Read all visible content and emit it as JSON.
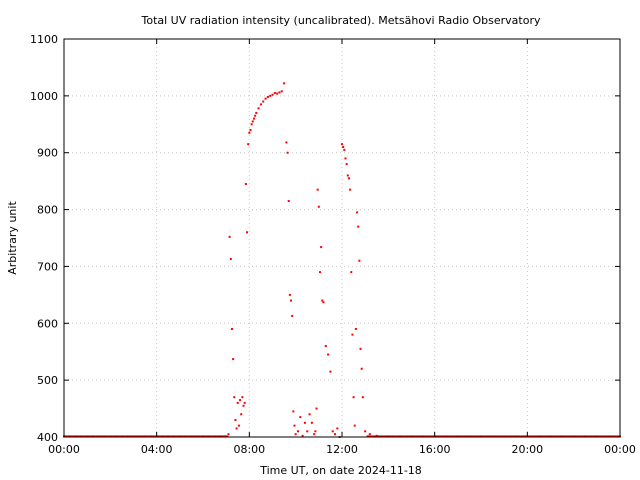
{
  "chart_data": {
    "type": "scatter",
    "title": "Total UV radiation intensity (uncalibrated). Metsähovi Radio Observatory",
    "xlabel": "Time UT, on date 2024-11-18",
    "ylabel": "Arbitrary unit",
    "xlim": [
      0,
      24
    ],
    "ylim": [
      400,
      1100
    ],
    "x_ticks": [
      {
        "value": 0,
        "label": "00:00"
      },
      {
        "value": 4,
        "label": "04:00"
      },
      {
        "value": 8,
        "label": "08:00"
      },
      {
        "value": 12,
        "label": "12:00"
      },
      {
        "value": 16,
        "label": "16:00"
      },
      {
        "value": 20,
        "label": "20:00"
      },
      {
        "value": 24,
        "label": "00:00"
      }
    ],
    "y_ticks": [
      {
        "value": 400,
        "label": "400"
      },
      {
        "value": 500,
        "label": "500"
      },
      {
        "value": 600,
        "label": "600"
      },
      {
        "value": 700,
        "label": "700"
      },
      {
        "value": 800,
        "label": "800"
      },
      {
        "value": 900,
        "label": "900"
      },
      {
        "value": 1000,
        "label": "1000"
      },
      {
        "value": 1100,
        "label": "1100"
      }
    ],
    "grid": true,
    "marker_color": "#ff0000",
    "series": [
      {
        "x": [
          0.0,
          0.25,
          0.5,
          0.75,
          1.0,
          1.25,
          1.5,
          1.75,
          2.0,
          2.25,
          2.5,
          2.75,
          3.0,
          3.25,
          3.5,
          3.75,
          4.0,
          4.25,
          4.5,
          4.75,
          5.0,
          5.25,
          5.5,
          5.75,
          6.0,
          6.25,
          6.5,
          6.75,
          7.0,
          7.1,
          7.15,
          7.2,
          7.25,
          7.3,
          7.35,
          7.4,
          7.45,
          7.5,
          7.55,
          7.6,
          7.65,
          7.7,
          7.75,
          7.8,
          7.85,
          7.9,
          7.95,
          8.0,
          8.05,
          8.1,
          8.15,
          8.2,
          8.25,
          8.3,
          8.4,
          8.5,
          8.6,
          8.7,
          8.8,
          8.9,
          9.0,
          9.1,
          9.2,
          9.3,
          9.4,
          9.5,
          9.6,
          9.65,
          9.7,
          9.75,
          9.8,
          9.85,
          9.9,
          9.95,
          10.0,
          10.1,
          10.2,
          10.3,
          10.4,
          10.5,
          10.6,
          10.7,
          10.8,
          10.85,
          10.9,
          10.95,
          11.0,
          11.05,
          11.1,
          11.15,
          11.2,
          11.3,
          11.4,
          11.5,
          11.6,
          11.7,
          11.8,
          11.9,
          12.0,
          12.05,
          12.1,
          12.15,
          12.2,
          12.25,
          12.3,
          12.35,
          12.4,
          12.45,
          12.5,
          12.55,
          12.6,
          12.65,
          12.7,
          12.75,
          12.8,
          12.85,
          12.9,
          13.0,
          13.2,
          13.5,
          14.0,
          14.5,
          15.0,
          15.5,
          16.0,
          16.5,
          17.0,
          17.5,
          18.0,
          18.5,
          19.0,
          19.5,
          20.0,
          20.5,
          21.0,
          21.5,
          22.0,
          22.5,
          23.0,
          23.5,
          24.0
        ],
        "y": [
          401,
          401,
          401,
          401,
          401,
          401,
          401,
          401,
          401,
          401,
          401,
          401,
          401,
          401,
          401,
          401,
          401,
          401,
          401,
          401,
          401,
          401,
          401,
          401,
          401,
          401,
          401,
          401,
          401,
          405,
          752,
          713,
          590,
          537,
          470,
          430,
          415,
          460,
          420,
          465,
          440,
          470,
          455,
          460,
          845,
          760,
          915,
          935,
          940,
          950,
          955,
          960,
          965,
          970,
          978,
          985,
          990,
          995,
          998,
          1000,
          1002,
          1005,
          1004,
          1006,
          1008,
          1022,
          918,
          900,
          815,
          650,
          640,
          613,
          445,
          420,
          405,
          410,
          435,
          402,
          425,
          410,
          440,
          425,
          405,
          410,
          450,
          835,
          805,
          690,
          734,
          640,
          637,
          560,
          545,
          515,
          410,
          405,
          415,
          400,
          915,
          910,
          905,
          890,
          880,
          860,
          855,
          835,
          690,
          580,
          470,
          420,
          590,
          795,
          770,
          710,
          555,
          520,
          470,
          410,
          405,
          402,
          401,
          401,
          401,
          401,
          401,
          401,
          401,
          401,
          401,
          401,
          401,
          401,
          401,
          401,
          401,
          401,
          401,
          401,
          401,
          401,
          401
        ]
      }
    ]
  }
}
